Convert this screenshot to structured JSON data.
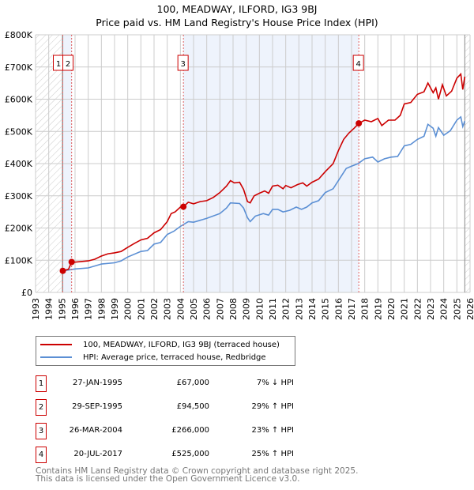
{
  "title": "100, MEADWAY, ILFORD, IG3 9BJ",
  "subtitle": "Price paid vs. HM Land Registry's House Price Index (HPI)",
  "chart_data": {
    "type": "line",
    "title": "100, MEADWAY, ILFORD, IG3 9BJ — Price paid vs. HM Land Registry's House Price Index (HPI)",
    "xlim": [
      1993,
      2026
    ],
    "ylim": [
      0,
      800000
    ],
    "x_ticks": [
      "1993",
      "1994",
      "1995",
      "1996",
      "1997",
      "1998",
      "1999",
      "2000",
      "2001",
      "2002",
      "2003",
      "2004",
      "2005",
      "2006",
      "2007",
      "2008",
      "2009",
      "2010",
      "2011",
      "2012",
      "2013",
      "2014",
      "2015",
      "2016",
      "2017",
      "2018",
      "2019",
      "2020",
      "2021",
      "2022",
      "2023",
      "2024",
      "2025",
      "2026"
    ],
    "y_ticks": [
      {
        "v": 0,
        "label": "£0"
      },
      {
        "v": 100,
        "label": "£100K"
      },
      {
        "v": 200,
        "label": "£200K"
      },
      {
        "v": 300,
        "label": "£300K"
      },
      {
        "v": 400,
        "label": "£400K"
      },
      {
        "v": 500,
        "label": "£500K"
      },
      {
        "v": 600,
        "label": "£600K"
      },
      {
        "v": 700,
        "label": "£700K"
      },
      {
        "v": 800,
        "label": "£800K"
      }
    ],
    "grid": true,
    "colors": {
      "property": "#cc0000",
      "hpi": "#5b8fd4",
      "shade": "#eef3fc"
    },
    "series": [
      {
        "name": "100, MEADWAY, ILFORD, IG3 9BJ (terraced house)",
        "unit": "£K",
        "x": [
          1995.07,
          1995.5,
          1995.74,
          1996,
          1997,
          1997.5,
          1998,
          1998.5,
          1999,
          1999.5,
          2000,
          2000.5,
          2001,
          2001.5,
          2002,
          2002.5,
          2003,
          2003.3,
          2003.6,
          2004,
          2004.23,
          2004.6,
          2005,
          2005.5,
          2006,
          2006.5,
          2007,
          2007.5,
          2007.8,
          2008.1,
          2008.5,
          2008.8,
          2009.1,
          2009.3,
          2009.6,
          2010,
          2010.4,
          2010.7,
          2011,
          2011.4,
          2011.8,
          2012,
          2012.4,
          2012.9,
          2013.3,
          2013.6,
          2014,
          2014.5,
          2015,
          2015.6,
          2016,
          2016.4,
          2016.8,
          2017.2,
          2017.55,
          2018,
          2018.5,
          2019,
          2019.3,
          2019.8,
          2020.3,
          2020.7,
          2021,
          2021.5,
          2022,
          2022.5,
          2022.8,
          2023.2,
          2023.4,
          2023.6,
          2023.9,
          2024.2,
          2024.6,
          2025,
          2025.3,
          2025.45,
          2025.6
        ],
        "y": [
          67,
          72,
          94.5,
          94,
          98,
          103,
          113,
          120,
          123,
          127,
          140,
          152,
          163,
          168,
          185,
          195,
          220,
          245,
          250,
          265,
          266,
          280,
          275,
          282,
          285,
          295,
          310,
          330,
          347,
          340,
          342,
          320,
          282,
          278,
          300,
          308,
          315,
          308,
          330,
          333,
          322,
          332,
          325,
          335,
          340,
          330,
          342,
          352,
          375,
          400,
          440,
          475,
          495,
          510,
          525,
          535,
          530,
          540,
          518,
          535,
          535,
          550,
          585,
          590,
          615,
          623,
          650,
          620,
          635,
          600,
          645,
          610,
          625,
          665,
          678,
          630,
          670
        ]
      },
      {
        "name": "HPI: Average price, terraced house, Redbridge",
        "unit": "£K",
        "x": [
          1995.07,
          1996,
          1997,
          1998,
          1999,
          1999.5,
          2000,
          2001,
          2001.5,
          2002,
          2002.5,
          2003,
          2003.5,
          2004,
          2004.6,
          2005,
          2006,
          2007,
          2007.5,
          2007.8,
          2008.5,
          2008.8,
          2009.1,
          2009.3,
          2009.7,
          2010.3,
          2010.7,
          2011,
          2011.4,
          2011.8,
          2012.3,
          2012.8,
          2013.2,
          2013.6,
          2014,
          2014.5,
          2015,
          2015.6,
          2016.2,
          2016.6,
          2017,
          2017.5,
          2018,
          2018.6,
          2019,
          2019.5,
          2020,
          2020.5,
          2021,
          2021.5,
          2022,
          2022.5,
          2022.8,
          2023.2,
          2023.4,
          2023.6,
          2024,
          2024.5,
          2025,
          2025.3,
          2025.45,
          2025.6
        ],
        "y": [
          67,
          73,
          76,
          88,
          92,
          98,
          110,
          127,
          130,
          150,
          155,
          180,
          190,
          205,
          220,
          218,
          230,
          245,
          262,
          278,
          276,
          262,
          232,
          220,
          237,
          245,
          240,
          258,
          258,
          250,
          255,
          265,
          258,
          265,
          278,
          285,
          310,
          322,
          360,
          385,
          392,
          400,
          415,
          420,
          405,
          415,
          420,
          422,
          455,
          460,
          475,
          485,
          522,
          510,
          485,
          512,
          488,
          502,
          535,
          545,
          515,
          532
        ]
      }
    ],
    "sales": [
      {
        "id": "1",
        "year": 1995.07,
        "price": 67
      },
      {
        "id": "2",
        "year": 1995.74,
        "price": 94.5
      },
      {
        "id": "3",
        "year": 2004.23,
        "price": 266
      },
      {
        "id": "4",
        "year": 2017.55,
        "price": 525
      }
    ],
    "shaded_ranges": [
      [
        1995.07,
        1995.74
      ],
      [
        2004.23,
        2017.55
      ]
    ],
    "hatched_ranges": [
      [
        1993,
        1995.07
      ],
      [
        2025.6,
        2026
      ]
    ],
    "legend_placement": "below"
  },
  "legend": [
    {
      "label": "100, MEADWAY, ILFORD, IG3 9BJ (terraced house)",
      "color": "#cc0000"
    },
    {
      "label": "HPI: Average price, terraced house, Redbridge",
      "color": "#5b8fd4"
    }
  ],
  "transactions": [
    {
      "num": "1",
      "date": "27-JAN-1995",
      "price": "£67,000",
      "hpi": "7% ↓ HPI"
    },
    {
      "num": "2",
      "date": "29-SEP-1995",
      "price": "£94,500",
      "hpi": "29% ↑ HPI"
    },
    {
      "num": "3",
      "date": "26-MAR-2004",
      "price": "£266,000",
      "hpi": "23% ↑ HPI"
    },
    {
      "num": "4",
      "date": "20-JUL-2017",
      "price": "£525,000",
      "hpi": "25% ↑ HPI"
    }
  ],
  "footer": {
    "line1": "Contains HM Land Registry data © Crown copyright and database right 2025.",
    "line2": "This data is licensed under the Open Government Licence v3.0."
  }
}
